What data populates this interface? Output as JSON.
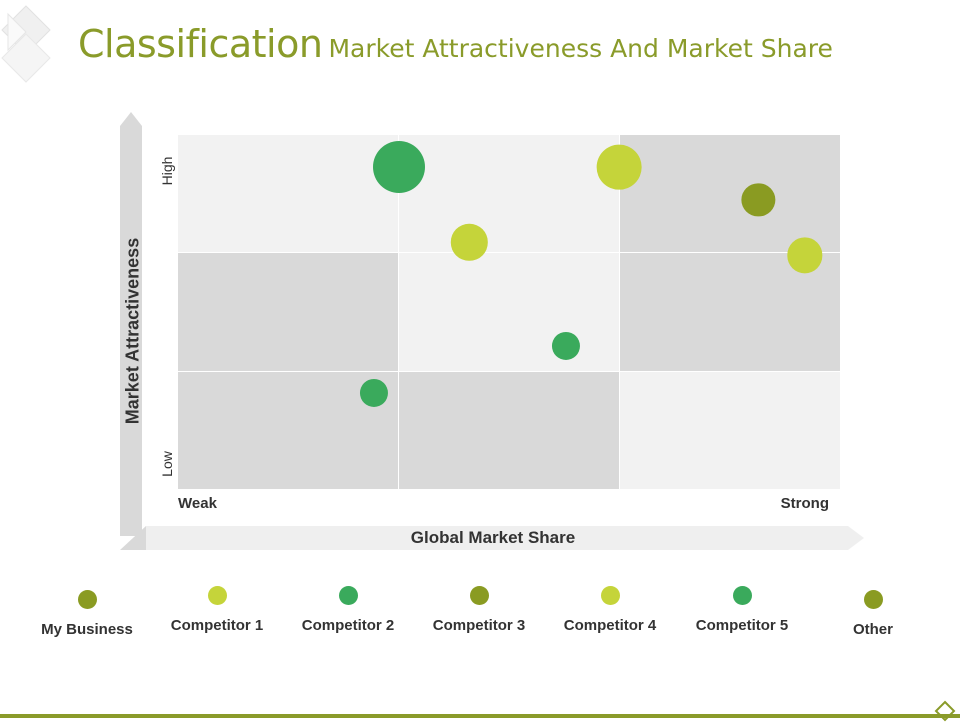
{
  "title": {
    "main": "Classification",
    "sub": "Market Attractiveness And Market Share"
  },
  "axes": {
    "y_label": "Market Attractiveness",
    "x_label": "Global Market Share",
    "y_high": "High",
    "y_low": "Low",
    "x_low": "Weak",
    "x_high": "Strong"
  },
  "colors": {
    "accent": "#8a9b2a",
    "olive": "#8a9b22",
    "lime": "#c5d43a",
    "green": "#3aaa5c",
    "cell_light": "#f2f2f2",
    "cell_dark": "#d9d9d9"
  },
  "chart_data": {
    "type": "scatter",
    "x_label": "Global Market Share",
    "y_label": "Market Attractiveness",
    "xlim": [
      0,
      3
    ],
    "ylim": [
      0,
      3
    ],
    "grid_shading": [
      [
        "light",
        "light",
        "dark"
      ],
      [
        "dark",
        "light",
        "dark"
      ],
      [
        "dark",
        "dark",
        "light"
      ]
    ],
    "points": [
      {
        "x": 1.0,
        "y": 2.73,
        "size": 1.0,
        "color": "green"
      },
      {
        "x": 2.0,
        "y": 2.73,
        "size": 0.86,
        "color": "lime"
      },
      {
        "x": 1.32,
        "y": 2.09,
        "size": 0.7,
        "color": "lime"
      },
      {
        "x": 2.63,
        "y": 2.45,
        "size": 0.64,
        "color": "olive"
      },
      {
        "x": 2.84,
        "y": 1.98,
        "size": 0.68,
        "color": "lime"
      },
      {
        "x": 1.76,
        "y": 1.21,
        "size": 0.54,
        "color": "green"
      },
      {
        "x": 0.89,
        "y": 0.81,
        "size": 0.54,
        "color": "green"
      }
    ]
  },
  "legend": [
    {
      "label": "My Business",
      "color": "olive"
    },
    {
      "label": "Competitor 1",
      "color": "lime"
    },
    {
      "label": "Competitor 2",
      "color": "green"
    },
    {
      "label": "Competitor 3",
      "color": "olive"
    },
    {
      "label": "Competitor 4",
      "color": "lime"
    },
    {
      "label": "Competitor 5",
      "color": "green"
    },
    {
      "label": "Other",
      "color": "olive"
    }
  ]
}
